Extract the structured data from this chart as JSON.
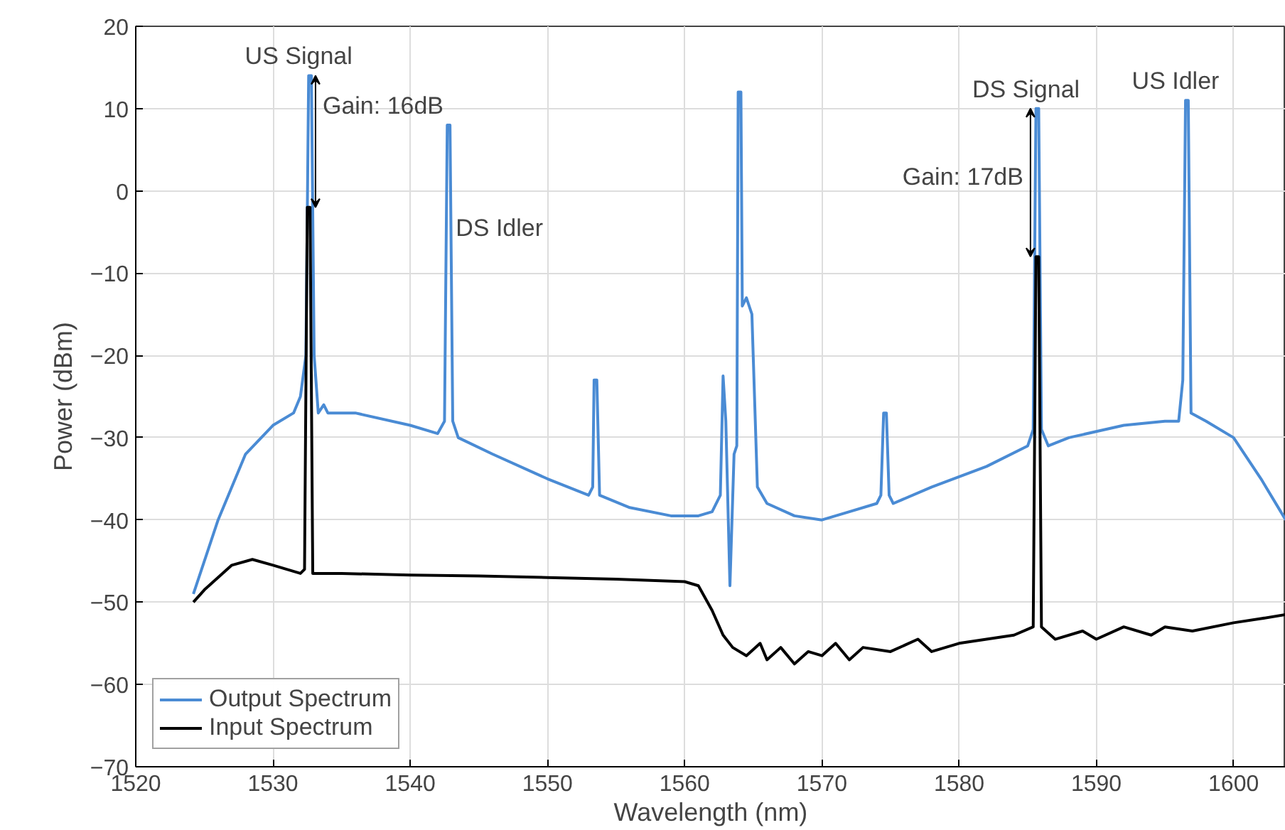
{
  "chart_data": {
    "type": "line",
    "xlabel": "Wavelength (nm)",
    "ylabel": "Power (dBm)",
    "xlim": [
      1520,
      1603.8
    ],
    "ylim": [
      -70,
      20
    ],
    "xticks": [
      1520,
      1530,
      1540,
      1550,
      1560,
      1570,
      1580,
      1590,
      1600
    ],
    "yticks": [
      -70,
      -60,
      -50,
      -40,
      -30,
      -20,
      -10,
      0,
      10,
      20
    ],
    "grid": true,
    "legend": "bottom left",
    "series": [
      {
        "name": "Output Spectrum",
        "color": "#4a8bd4",
        "x": [
          1524.2,
          1526,
          1528,
          1530,
          1531.5,
          1532,
          1532.4,
          1532.6,
          1532.8,
          1533,
          1533.3,
          1533.7,
          1534,
          1536,
          1540,
          1542,
          1542.5,
          1542.7,
          1542.9,
          1543.1,
          1543.5,
          1546,
          1550,
          1553,
          1553.3,
          1553.4,
          1553.6,
          1553.8,
          1556,
          1559,
          1561,
          1562,
          1562.6,
          1562.8,
          1563.0,
          1563.3,
          1563.6,
          1563.8,
          1563.9,
          1564.1,
          1564.2,
          1564.5,
          1564.9,
          1565.3,
          1566,
          1568,
          1570,
          1572,
          1574,
          1574.3,
          1574.5,
          1574.7,
          1574.9,
          1575.2,
          1578,
          1582,
          1585,
          1585.4,
          1585.6,
          1585.8,
          1586,
          1586.5,
          1588,
          1592,
          1595,
          1596,
          1596.3,
          1596.5,
          1596.7,
          1596.9,
          1598,
          1600,
          1602,
          1603.8
        ],
        "values": [
          -49,
          -40,
          -32,
          -28.5,
          -27,
          -25,
          -20,
          14,
          14,
          -20,
          -27,
          -26,
          -27,
          -27,
          -28.5,
          -29.5,
          -28,
          8,
          8,
          -28,
          -30,
          -32,
          -35,
          -37,
          -36,
          -23,
          -23,
          -37,
          -38.5,
          -39.5,
          -39.5,
          -39,
          -37,
          -22.5,
          -28,
          -48,
          -32,
          -31,
          12,
          12,
          -14,
          -13,
          -15,
          -36,
          -38,
          -39.5,
          -40,
          -39,
          -38,
          -37,
          -27,
          -27,
          -37,
          -38,
          -36,
          -33.5,
          -31,
          -29,
          10,
          10,
          -29,
          -31,
          -30,
          -28.5,
          -28,
          -28,
          -23,
          11,
          11,
          -27,
          -28,
          -30,
          -35,
          -40
        ]
      },
      {
        "name": "Input Spectrum",
        "color": "#000000",
        "x": [
          1524.2,
          1525,
          1527,
          1528.5,
          1530,
          1532,
          1532.3,
          1532.5,
          1532.7,
          1532.9,
          1535,
          1540,
          1545,
          1550,
          1555,
          1560,
          1561,
          1562,
          1562.8,
          1563.5,
          1564.5,
          1565.5,
          1566,
          1567,
          1568,
          1569,
          1570,
          1571,
          1572,
          1573,
          1575,
          1577,
          1578,
          1580,
          1582,
          1584,
          1585.4,
          1585.6,
          1585.8,
          1586,
          1587,
          1589,
          1590,
          1592,
          1594,
          1595,
          1597,
          1600,
          1602,
          1603.8
        ],
        "values": [
          -50,
          -48.5,
          -45.5,
          -44.8,
          -45.5,
          -46.5,
          -46,
          -2,
          -2,
          -46.5,
          -46.5,
          -46.7,
          -46.8,
          -47,
          -47.2,
          -47.5,
          -48,
          -51,
          -54,
          -55.5,
          -56.5,
          -55,
          -57,
          -55.5,
          -57.5,
          -56,
          -56.5,
          -55,
          -57,
          -55.5,
          -56,
          -54.5,
          -56,
          -55,
          -54.5,
          -54,
          -53,
          -8,
          -8,
          -53,
          -54.5,
          -53.5,
          -54.5,
          -53,
          -54,
          -53,
          -53.5,
          -52.5,
          -52,
          -51.5
        ]
      }
    ],
    "annotations": [
      {
        "text": "US Signal",
        "x": 1532.7,
        "y": 14
      },
      {
        "text": "Gain: 16dB",
        "x": 1533.1,
        "y": 10.3
      },
      {
        "text": "DS Idler",
        "x": 1542.8,
        "y": -4.5
      },
      {
        "text": "DS Signal",
        "x": 1585.7,
        "y": 10
      },
      {
        "text": "Gain: 17dB",
        "x": 1585.2,
        "y": 1.7
      },
      {
        "text": "US Idler",
        "x": 1596.6,
        "y": 11
      }
    ]
  }
}
